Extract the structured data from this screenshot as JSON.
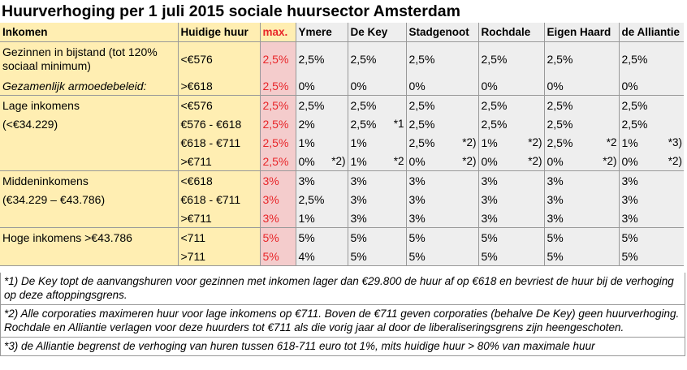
{
  "title": "Huurverhoging per 1 juli 2015 sociale huursector Amsterdam",
  "columns": [
    "Inkomen",
    "Huidige huur",
    "max.",
    "Ymere",
    "De Key",
    "Stadgenoot",
    "Rochdale",
    "Eigen Haard",
    "de Alliantie"
  ],
  "rows": [
    {
      "c0": "Gezinnen in bijstand (tot 120% sociaal minimum)",
      "c1": "<€576",
      "max": "2,5%",
      "v": [
        "2,5%",
        "2,5%",
        "2,5%",
        "2,5%",
        "2,5%",
        "2,5%"
      ],
      "n": [
        "",
        "",
        "",
        "",
        "",
        ""
      ]
    },
    {
      "c0": "Gezamenlijk armoedebeleid:",
      "c1": ">€618",
      "max": "2,5%",
      "v": [
        "0%",
        "0%",
        "0%",
        "0%",
        "0%",
        "0%"
      ],
      "n": [
        "",
        "",
        "",
        "",
        "",
        ""
      ]
    },
    {
      "c0": "Lage inkomens",
      "c1": "<€576",
      "max": "2,5%",
      "v": [
        "2,5%",
        "2,5%",
        "2,5%",
        "2,5%",
        "2,5%",
        "2,5%"
      ],
      "n": [
        "",
        "",
        "",
        "",
        "",
        ""
      ]
    },
    {
      "c0": " (<€34.229)",
      "c1": "€576 - €618",
      "max": "2,5%",
      "v": [
        "2%",
        "2,5%",
        "2,5%",
        "2,5%",
        "2,5%",
        "2,5%"
      ],
      "n": [
        "",
        "*1",
        "",
        "",
        "",
        ""
      ]
    },
    {
      "c0": "",
      "c1": "€618 - €711",
      "max": "2,5%",
      "v": [
        "1%",
        "1%",
        "2,5%",
        "1%",
        "2,5%",
        "1%"
      ],
      "n": [
        "",
        "",
        "*2)",
        "*2)",
        "*2",
        "*3)"
      ]
    },
    {
      "c0": "",
      "c1": ">€711",
      "max": "2,5%",
      "v": [
        "0%",
        "1%",
        "0%",
        "0%",
        "0%",
        "0%"
      ],
      "n": [
        "*2)",
        "*2",
        "*2)",
        "*2)",
        "*2)",
        "*2)"
      ]
    },
    {
      "c0": "Middeninkomens",
      "c1": "<€618",
      "max": "3%",
      "v": [
        "3%",
        "3%",
        "3%",
        "3%",
        "3%",
        "3%"
      ],
      "n": [
        "",
        "",
        "",
        "",
        "",
        ""
      ]
    },
    {
      "c0": "(€34.229 – €43.786)",
      "c1": "€618 - €711",
      "max": "3%",
      "v": [
        "2,5%",
        "3%",
        "3%",
        "3%",
        "3%",
        "3%"
      ],
      "n": [
        "",
        "",
        "",
        "",
        "",
        ""
      ]
    },
    {
      "c0": "",
      "c1": ">€711",
      "max": "3%",
      "v": [
        "1%",
        "3%",
        "3%",
        "3%",
        "3%",
        "3%"
      ],
      "n": [
        "",
        "",
        "",
        "",
        "",
        ""
      ]
    },
    {
      "c0": "Hoge inkomens >€43.786",
      "c1": "<711",
      "max": "5%",
      "v": [
        "5%",
        "5%",
        "5%",
        "5%",
        "5%",
        "5%"
      ],
      "n": [
        "",
        "",
        "",
        "",
        "",
        ""
      ]
    },
    {
      "c0": "",
      "c1": ">711",
      "max": "5%",
      "v": [
        "4%",
        "5%",
        "5%",
        "5%",
        "5%",
        "5%"
      ],
      "n": [
        "",
        "",
        "",
        "",
        "",
        ""
      ]
    }
  ],
  "notes": [
    "*1) De Key topt de aanvangshuren voor gezinnen met inkomen lager dan €29.800 de huur af op €618 en bevriest de huur bij de verhoging op deze aftoppingsgrens.",
    "*2) Alle corporaties maximeren huur voor lage inkomens op €711. Boven de €711 geven corporaties (behalve De Key) geen huurverhoging. Rochdale en Alliantie verlagen voor deze huurders tot €711 als die vorig jaar al door de liberaliseringsgrens zijn heengeschoten.",
    "*3) de Alliantie begrenst de verhoging van huren tussen 618-711 euro tot 1%, mits huidige huur > 80% van maximale huur"
  ]
}
